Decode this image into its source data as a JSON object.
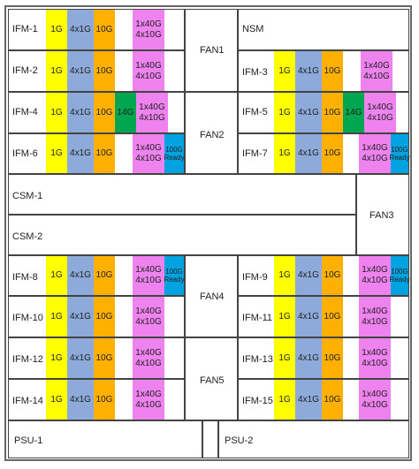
{
  "fans": {
    "fan1": "FAN1",
    "fan2": "FAN2",
    "fan3": "FAN3",
    "fan4": "FAN4",
    "fan5": "FAN5"
  },
  "nsm": "NSM",
  "csm": [
    "CSM-1",
    "CSM-2"
  ],
  "psu": [
    "PSU-1",
    "PSU-2"
  ],
  "ifm": {
    "1": "IFM-1",
    "2": "IFM-2",
    "3": "IFM-3",
    "4": "IFM-4",
    "5": "IFM-5",
    "6": "IFM-6",
    "7": "IFM-7",
    "8": "IFM-8",
    "9": "IFM-9",
    "10": "IFM-10",
    "11": "IFM-11",
    "12": "IFM-12",
    "13": "IFM-13",
    "14": "IFM-14",
    "15": "IFM-15"
  },
  "speeds": {
    "g1": "1G",
    "x41": "4x1G",
    "g10": "10G",
    "g14": "14G",
    "q40a": "1x40G",
    "q40b": "4x10G",
    "g100": "100G",
    "ready": "Ready"
  },
  "colors": {
    "yellow": "#ffff00",
    "blue": "#8eaadb",
    "orange": "#ffb000",
    "green": "#00a650",
    "pink": "#ee82ee",
    "cyan": "#00a3e0"
  }
}
